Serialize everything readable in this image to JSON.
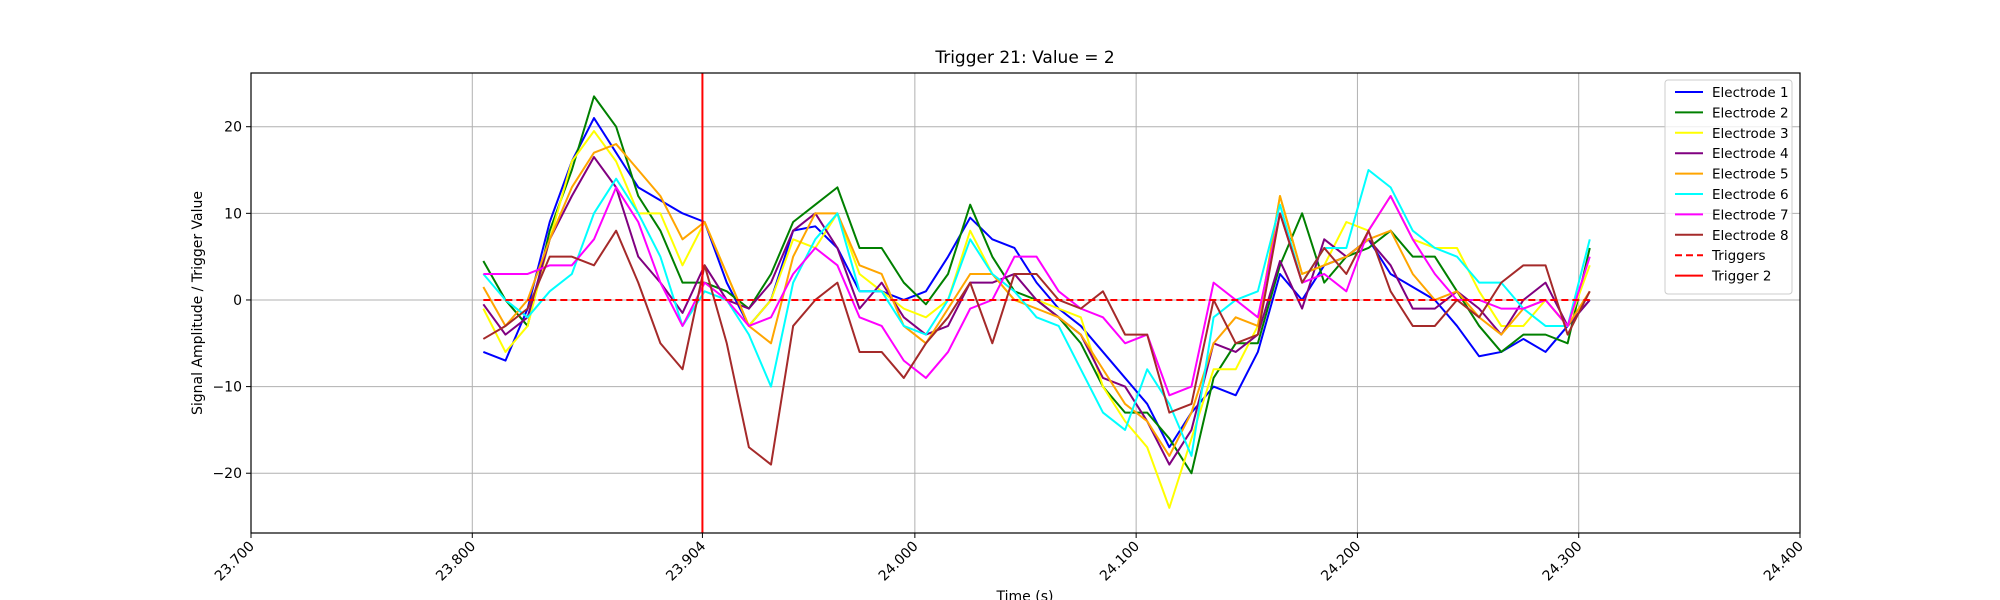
{
  "chart_data": {
    "type": "line",
    "title": "Trigger 21: Value = 2",
    "xlabel": "Time (s)",
    "ylabel": "Signal Amplitude / Trigger Value",
    "xlim": [
      23.7,
      24.4
    ],
    "ylim": [
      -26.9,
      26.2
    ],
    "xticks": [
      {
        "value": 23.7,
        "label": "23.700"
      },
      {
        "value": 23.8,
        "label": "23.800"
      },
      {
        "value": 23.904,
        "label": "23.904"
      },
      {
        "value": 24.0,
        "label": "24.000"
      },
      {
        "value": 24.1,
        "label": "24.100"
      },
      {
        "value": 24.2,
        "label": "24.200"
      },
      {
        "value": 24.3,
        "label": "24.300"
      },
      {
        "value": 24.4,
        "label": "24.400"
      }
    ],
    "yticks": [
      {
        "value": -20,
        "label": "−20"
      },
      {
        "value": -10,
        "label": "−10"
      },
      0,
      10,
      20
    ],
    "grid": true,
    "legend": "upper right",
    "x": [
      23.805,
      23.815,
      23.825,
      23.835,
      23.845,
      23.855,
      23.865,
      23.875,
      23.885,
      23.895,
      23.905,
      23.915,
      23.925,
      23.935,
      23.945,
      23.955,
      23.965,
      23.975,
      23.985,
      23.995,
      24.005,
      24.015,
      24.025,
      24.035,
      24.045,
      24.055,
      24.065,
      24.075,
      24.085,
      24.095,
      24.105,
      24.115,
      24.125,
      24.135,
      24.145,
      24.155,
      24.165,
      24.175,
      24.185,
      24.195,
      24.205,
      24.215,
      24.225,
      24.235,
      24.245,
      24.255,
      24.265,
      24.275,
      24.285,
      24.295,
      24.305
    ],
    "series": [
      {
        "name": "Electrode 1",
        "color": "#0000ff",
        "values": [
          -6,
          -7,
          -1,
          9,
          16,
          21,
          17,
          13,
          11.5,
          10,
          9,
          2,
          -3,
          0,
          8,
          8.5,
          6,
          1,
          1,
          0,
          1,
          5,
          9.5,
          7,
          6,
          2,
          -1,
          -3,
          -6,
          -9,
          -12,
          -17,
          -13,
          -10,
          -11,
          -6,
          3,
          0,
          4,
          5,
          7,
          3,
          1.5,
          0,
          -3,
          -6.5,
          -6,
          -4.5,
          -6,
          -3,
          0
        ]
      },
      {
        "name": "Electrode 2",
        "color": "#008000",
        "values": [
          4.5,
          0,
          -3,
          8,
          15,
          23.5,
          20,
          12,
          8,
          2,
          2,
          1,
          -1,
          3,
          9,
          11,
          13,
          6,
          6,
          2,
          -0.5,
          3,
          11,
          5,
          1,
          0,
          -2,
          -5,
          -10,
          -13,
          -13,
          -16,
          -20,
          -9,
          -5,
          -5,
          4,
          10,
          2,
          5,
          6,
          8,
          5,
          5,
          1,
          -3,
          -6,
          -4,
          -4,
          -5,
          6
        ]
      },
      {
        "name": "Electrode 3",
        "color": "#ffff00",
        "values": [
          -1,
          -6,
          -3,
          7,
          16,
          19.5,
          16,
          10,
          10,
          4,
          9,
          3,
          -3,
          0,
          7,
          6,
          10,
          3,
          1,
          -1,
          -2,
          0,
          8,
          3,
          0,
          0,
          -1,
          -2,
          -10,
          -14,
          -17,
          -24,
          -16,
          -8,
          -8,
          -3,
          12,
          3,
          4,
          9,
          8,
          12,
          7,
          6,
          6,
          1,
          -3,
          -3,
          0,
          -3,
          4
        ]
      },
      {
        "name": "Electrode 4",
        "color": "#800080",
        "values": [
          -0.5,
          -4,
          -2,
          7,
          12,
          16.5,
          13,
          5,
          2,
          -1.5,
          4,
          0,
          -1,
          2,
          8,
          10,
          6,
          -1,
          2,
          -2,
          -4,
          -3,
          2,
          2,
          3,
          0,
          -2,
          -4,
          -9,
          -10,
          -14,
          -19,
          -15,
          -5,
          -6,
          -4,
          4.5,
          -1,
          7,
          5,
          7,
          4,
          -1,
          -1,
          1,
          -1,
          -4,
          0,
          2,
          -3,
          0
        ]
      },
      {
        "name": "Electrode 5",
        "color": "#ffa500",
        "values": [
          1.5,
          -3,
          0,
          7,
          13,
          17,
          18,
          15,
          12,
          7,
          9,
          3,
          -3,
          -5,
          5,
          10,
          10,
          4,
          3,
          -3,
          -5,
          -1,
          3,
          3,
          0,
          -1,
          -2,
          -4,
          -8,
          -12,
          -14,
          -18,
          -13,
          -5,
          -2,
          -3,
          12,
          3,
          4,
          5,
          7,
          8,
          3,
          0,
          1,
          -2,
          -4,
          -1,
          0,
          -3,
          1
        ]
      },
      {
        "name": "Electrode 6",
        "color": "#00ffff",
        "values": [
          3,
          0,
          -2,
          1,
          3,
          10,
          14,
          10,
          5,
          -3,
          1,
          0,
          -4,
          -10,
          2,
          7,
          10,
          1,
          1,
          -3,
          -4,
          0,
          7,
          3,
          1,
          -2,
          -3,
          -8,
          -13,
          -15,
          -8,
          -12,
          -18,
          -2,
          0,
          1,
          11,
          2,
          6,
          6,
          15,
          13,
          8,
          6,
          5,
          2,
          2,
          -1,
          -3,
          -3,
          7
        ]
      },
      {
        "name": "Electrode 7",
        "color": "#ff00ff",
        "values": [
          3,
          3,
          3,
          4,
          4,
          7,
          13,
          9,
          2,
          -3,
          2,
          0,
          -3,
          -2,
          3,
          6,
          4,
          -2,
          -3,
          -7,
          -9,
          -6,
          -1,
          0,
          5,
          5,
          1,
          -1,
          -2,
          -5,
          -4,
          -11,
          -10,
          2,
          0,
          -2,
          10,
          2,
          3,
          1,
          8,
          12,
          7,
          3,
          0,
          0,
          -1,
          -1,
          0,
          -3,
          5
        ]
      },
      {
        "name": "Electrode 8",
        "color": "#a52a2a",
        "values": [
          -4.5,
          -3,
          -1,
          5,
          5,
          4,
          8,
          2,
          -5,
          -8,
          4,
          -5,
          -17,
          -19,
          -3,
          0,
          2,
          -6,
          -6,
          -9,
          -5,
          -2,
          2,
          -5,
          3,
          3,
          0,
          -1,
          1,
          -4,
          -4,
          -13,
          -12,
          0,
          -5,
          -4,
          10,
          2,
          6,
          3,
          8,
          1,
          -3,
          -3,
          0,
          -2,
          2,
          4,
          4,
          -4,
          1
        ]
      },
      {
        "name": "Triggers",
        "color": "#ff0000",
        "dashed": true,
        "x": [
          23.805,
          24.305
        ],
        "values": [
          0,
          0
        ]
      },
      {
        "name": "Trigger 2",
        "color": "#ff0000",
        "vline": 23.904
      }
    ]
  }
}
